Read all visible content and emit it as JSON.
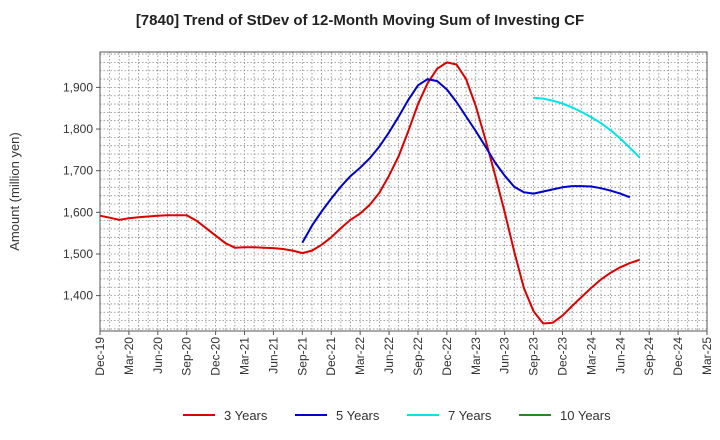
{
  "chart_data": {
    "type": "line",
    "title": "[7840]  Trend of StDev of 12-Month Moving Sum of Investing CF",
    "xlabel": "",
    "ylabel": "Amount (million yen)",
    "ylim": [
      1315,
      1985
    ],
    "yticks": [
      1400,
      1500,
      1600,
      1700,
      1800,
      1900
    ],
    "ytick_labels": [
      "1,400",
      "1,500",
      "1,600",
      "1,700",
      "1,800",
      "1,900"
    ],
    "grid": true,
    "legend_position": "bottom",
    "x_start_month": "Dec-19",
    "x_end_month": "Mar-25",
    "x_tick_labels": [
      "Dec-19",
      "Mar-20",
      "Jun-20",
      "Sep-20",
      "Dec-20",
      "Mar-21",
      "Jun-21",
      "Sep-21",
      "Dec-21",
      "Mar-22",
      "Jun-22",
      "Sep-22",
      "Dec-22",
      "Mar-23",
      "Jun-23",
      "Sep-23",
      "Dec-23",
      "Mar-24",
      "Jun-24",
      "Sep-24",
      "Dec-24",
      "Mar-25"
    ],
    "series": [
      {
        "name": "3 Years",
        "color": "#dd0000",
        "start_index": 0,
        "values": [
          1592,
          1587,
          1582,
          1586,
          1588,
          1590,
          1592,
          1593,
          1593,
          1593,
          1580,
          1562,
          1544,
          1526,
          1515,
          1516,
          1516,
          1515,
          1514,
          1512,
          1508,
          1502,
          1508,
          1522,
          1540,
          1562,
          1582,
          1597,
          1618,
          1647,
          1688,
          1735,
          1795,
          1860,
          1910,
          1945,
          1960,
          1955,
          1920,
          1855,
          1775,
          1690,
          1600,
          1505,
          1418,
          1362,
          1333,
          1335,
          1352,
          1375,
          1397,
          1419,
          1439,
          1455,
          1468,
          1478,
          1486
        ]
      },
      {
        "name": "5 Years",
        "color": "#0000cc",
        "start_index": 21,
        "values": [
          1527,
          1568,
          1602,
          1633,
          1662,
          1687,
          1707,
          1730,
          1758,
          1792,
          1830,
          1870,
          1905,
          1920,
          1915,
          1895,
          1865,
          1830,
          1795,
          1758,
          1720,
          1688,
          1661,
          1648,
          1645,
          1650,
          1655,
          1660,
          1663,
          1663,
          1662,
          1658,
          1652,
          1645,
          1636
        ]
      },
      {
        "name": "7 Years",
        "color": "#00e5e5",
        "start_index": 45,
        "values": [
          1875,
          1873,
          1868,
          1861,
          1852,
          1841,
          1828,
          1814,
          1797,
          1777,
          1755,
          1732
        ]
      },
      {
        "name": "10 Years",
        "color": "#228b22",
        "start_index": 0,
        "values": []
      }
    ]
  }
}
